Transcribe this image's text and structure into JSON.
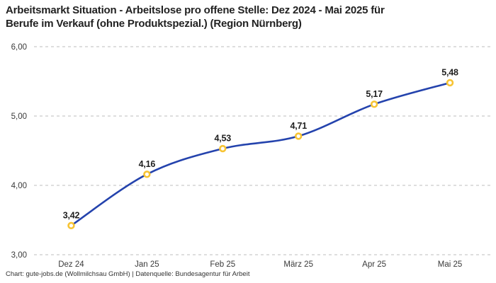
{
  "header": {
    "title_lines": [
      "Arbeitsmarkt Situation - Arbeitslose pro offene Stelle: Dez 2024 - Mai 2025 für",
      "Berufe im Verkauf (ohne Produktspezial.) (Region Nürnberg)"
    ]
  },
  "chart_data": {
    "type": "line",
    "title": "Arbeitsmarkt Situation - Arbeitslose pro offene Stelle: Dez 2024 - Mai 2025 für Berufe im Verkauf (ohne Produktspezial.) (Region Nürnberg)",
    "categories": [
      "Dez 24",
      "Jan 25",
      "Feb 25",
      "März 25",
      "Apr 25",
      "Mai 25"
    ],
    "values": [
      3.42,
      4.16,
      4.53,
      4.71,
      5.17,
      5.48
    ],
    "value_labels": [
      "3,42",
      "4,16",
      "4,53",
      "4,71",
      "5,17",
      "5,48"
    ],
    "y_ticks": {
      "values": [
        3,
        4,
        5,
        6
      ],
      "labels": [
        "3,00",
        "4,00",
        "5,00",
        "6,00"
      ]
    },
    "ylim": [
      3,
      6
    ],
    "xlabel": "",
    "ylabel": "",
    "grid": "horizontal-dashed",
    "legend_position": "none",
    "line_smooth": true,
    "colors": {
      "line": "#2443AD",
      "marker_ring": "#F7C434",
      "marker_fill": "#FFFFFF",
      "grid": "#CBCBCB",
      "axis_text": "#3A3A3A",
      "value_label_text": "#1F1F1F",
      "background": "#FFFFFF"
    }
  },
  "footer": {
    "credit": "Chart: gute-jobs.de (Wollmilchsau GmbH) | Datenquelle: Bundesagentur für Arbeit"
  }
}
